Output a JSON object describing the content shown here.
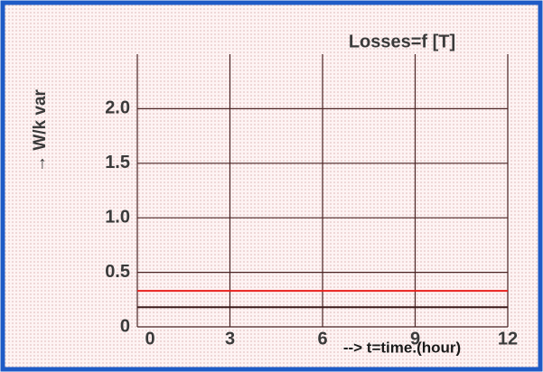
{
  "chart_data": {
    "type": "line",
    "title": "Losses=f [T]",
    "ylabel": "→ W/k var",
    "xlabel": "--> t=time.(hour)",
    "x": [
      0,
      12
    ],
    "series": [
      {
        "color": "#e8201c",
        "values": [
          0.33,
          0.33
        ]
      },
      {
        "color": "#3a1a1a",
        "values": [
          0.18,
          0.18
        ]
      }
    ],
    "xlim": [
      0,
      12
    ],
    "xticks": [
      0,
      3,
      6,
      9,
      12
    ],
    "ylim": [
      0,
      2.5
    ],
    "yticks": [
      0,
      {
        "value": 0.5,
        "label": "0.5"
      },
      {
        "value": 1,
        "label": "1.0"
      },
      {
        "value": 1.5,
        "label": "1.5"
      },
      {
        "value": 2,
        "label": "2.0"
      }
    ],
    "grid": true
  }
}
